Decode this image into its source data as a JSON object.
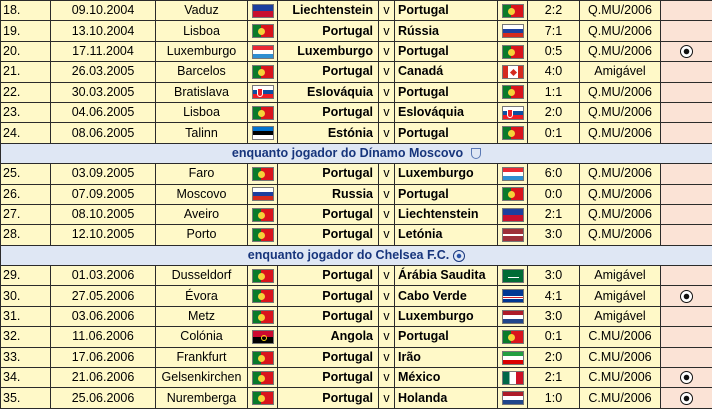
{
  "rows": [
    {
      "kind": "match",
      "num": "18.",
      "date": "09.10.2004",
      "city": "Vaduz",
      "home": "Liechtenstein",
      "home_flag": "liechtenstein",
      "v": "v",
      "away": "Portugal",
      "away_flag": "portugal",
      "score": "2:2",
      "comp": "Q.MU/2006",
      "ball": false
    },
    {
      "kind": "match",
      "num": "19.",
      "date": "13.10.2004",
      "city": "Lisboa",
      "home": "Portugal",
      "home_flag": "portugal",
      "v": "v",
      "away": "Rússia",
      "away_flag": "russia",
      "score": "7:1",
      "comp": "Q.MU/2006",
      "ball": false
    },
    {
      "kind": "match",
      "num": "20.",
      "date": "17.11.2004",
      "city": "Luxemburgo",
      "home": "Luxemburgo",
      "home_flag": "luxembourg",
      "v": "v",
      "away": "Portugal",
      "away_flag": "portugal",
      "score": "0:5",
      "comp": "Q.MU/2006",
      "ball": true
    },
    {
      "kind": "match",
      "num": "21.",
      "date": "26.03.2005",
      "city": "Barcelos",
      "home": "Portugal",
      "home_flag": "portugal",
      "v": "v",
      "away": "Canadá",
      "away_flag": "canada",
      "score": "4:0",
      "comp": "Amigável",
      "ball": false
    },
    {
      "kind": "match",
      "num": "22.",
      "date": "30.03.2005",
      "city": "Bratislava",
      "home": "Eslováquia",
      "home_flag": "slovakia",
      "v": "v",
      "away": "Portugal",
      "away_flag": "portugal",
      "score": "1:1",
      "comp": "Q.MU/2006",
      "ball": false
    },
    {
      "kind": "match",
      "num": "23.",
      "date": "04.06.2005",
      "city": "Lisboa",
      "home": "Portugal",
      "home_flag": "portugal",
      "v": "v",
      "away": "Eslováquia",
      "away_flag": "slovakia",
      "score": "2:0",
      "comp": "Q.MU/2006",
      "ball": false
    },
    {
      "kind": "match",
      "num": "24.",
      "date": "08.06.2005",
      "city": "Talinn",
      "home": "Estónia",
      "home_flag": "estonia",
      "v": "v",
      "away": "Portugal",
      "away_flag": "portugal",
      "score": "0:1",
      "comp": "Q.MU/2006",
      "ball": false
    },
    {
      "kind": "section",
      "text": "enquanto jogador do Dínamo Moscovo",
      "crest": "dinamo-crest"
    },
    {
      "kind": "match",
      "num": "25.",
      "date": "03.09.2005",
      "city": "Faro",
      "home": "Portugal",
      "home_flag": "portugal",
      "v": "v",
      "away": "Luxemburgo",
      "away_flag": "luxembourg",
      "score": "6:0",
      "comp": "Q.MU/2006",
      "ball": false
    },
    {
      "kind": "match",
      "num": "26.",
      "date": "07.09.2005",
      "city": "Moscovo",
      "home": "Russia",
      "home_flag": "russia",
      "v": "v",
      "away": "Portugal",
      "away_flag": "portugal",
      "score": "0:0",
      "comp": "Q.MU/2006",
      "ball": false
    },
    {
      "kind": "match",
      "num": "27.",
      "date": "08.10.2005",
      "city": "Aveiro",
      "home": "Portugal",
      "home_flag": "portugal",
      "v": "v",
      "away": "Liechtenstein",
      "away_flag": "liechtenstein",
      "score": "2:1",
      "comp": "Q.MU/2006",
      "ball": false
    },
    {
      "kind": "match",
      "num": "28.",
      "date": "12.10.2005",
      "city": "Porto",
      "home": "Portugal",
      "home_flag": "portugal",
      "v": "v",
      "away": "Letónia",
      "away_flag": "latvia",
      "score": "3:0",
      "comp": "Q.MU/2006",
      "ball": false
    },
    {
      "kind": "section",
      "text": "enquanto jogador do Chelsea F.C.",
      "crest": "chelsea-crest"
    },
    {
      "kind": "match",
      "num": "29.",
      "date": "01.03.2006",
      "city": "Dusseldorf",
      "home": "Portugal",
      "home_flag": "portugal",
      "v": "v",
      "away": "Árábia Saudita",
      "away_flag": "saudi",
      "score": "3:0",
      "comp": "Amigável",
      "ball": false
    },
    {
      "kind": "match",
      "num": "30.",
      "date": "27.05.2006",
      "city": "Évora",
      "home": "Portugal",
      "home_flag": "portugal",
      "v": "v",
      "away": "Cabo Verde",
      "away_flag": "capeverde",
      "score": "4:1",
      "comp": "Amigável",
      "ball": true
    },
    {
      "kind": "match",
      "num": "31.",
      "date": "03.06.2006",
      "city": "Metz",
      "home": "Portugal",
      "home_flag": "portugal",
      "v": "v",
      "away": "Luxemburgo",
      "away_flag": "netherlands",
      "score": "3:0",
      "comp": "Amigável",
      "ball": false
    },
    {
      "kind": "match",
      "num": "32.",
      "date": "11.06.2006",
      "city": "Colónia",
      "home": "Angola",
      "home_flag": "angola",
      "v": "v",
      "away": "Portugal",
      "away_flag": "portugal",
      "score": "0:1",
      "comp": "C.MU/2006",
      "ball": false
    },
    {
      "kind": "match",
      "num": "33.",
      "date": "17.06.2006",
      "city": "Frankfurt",
      "home": "Portugal",
      "home_flag": "portugal",
      "v": "v",
      "away": "Irão",
      "away_flag": "iran",
      "score": "2:0",
      "comp": "C.MU/2006",
      "ball": false
    },
    {
      "kind": "match",
      "num": "34.",
      "date": "21.06.2006",
      "city": "Gelsenkirchen",
      "home": "Portugal",
      "home_flag": "portugal",
      "v": "v",
      "away": "México",
      "away_flag": "mexico",
      "score": "2:1",
      "comp": "C.MU/2006",
      "ball": true
    },
    {
      "kind": "match",
      "num": "35.",
      "date": "25.06.2006",
      "city": "Nuremberga",
      "home": "Portugal",
      "home_flag": "portugal",
      "v": "v",
      "away": "Holanda",
      "away_flag": "netherlands",
      "score": "1:0",
      "comp": "C.MU/2006",
      "ball": true
    }
  ],
  "colors": {
    "row_bg": "#fff9c8",
    "pad_bg": "#fbe3d6",
    "section_bg": "#dfe7f4",
    "section_text": "#17357c",
    "border": "#2b2b2b"
  }
}
